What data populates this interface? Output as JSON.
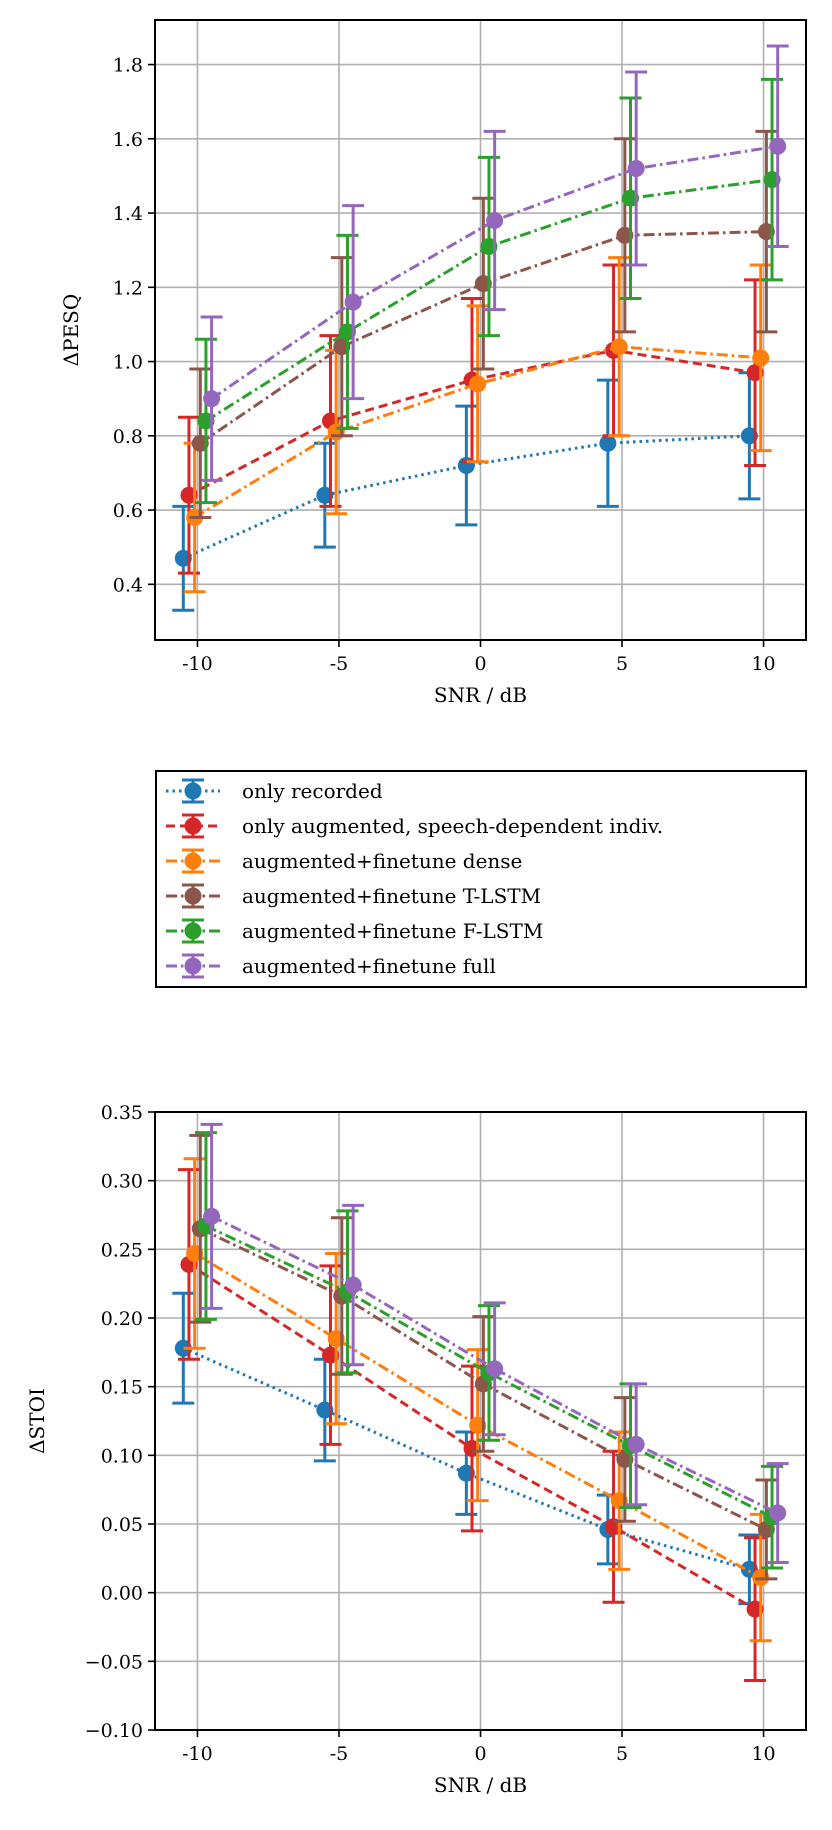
{
  "legend": {
    "entries": [
      {
        "label": "only recorded",
        "color": "#1f77b4",
        "dash": "dotted"
      },
      {
        "label": "only augmented, speech-dependent indiv.",
        "color": "#d62728",
        "dash": "dashed"
      },
      {
        "label": "augmented+finetune dense",
        "color": "#ff7f0e",
        "dash": "dashdot"
      },
      {
        "label": "augmented+finetune T-LSTM",
        "color": "#8c564b",
        "dash": "dashdot"
      },
      {
        "label": "augmented+finetune F-LSTM",
        "color": "#2ca02c",
        "dash": "dashdot"
      },
      {
        "label": "augmented+finetune full",
        "color": "#9467bd",
        "dash": "dashdot"
      }
    ]
  },
  "chart_data": [
    {
      "type": "line",
      "title": "",
      "xlabel": "SNR / dB",
      "ylabel": "ΔPESQ",
      "xlim": [
        -11.5,
        11.5
      ],
      "ylim": [
        0.25,
        1.92
      ],
      "x_ticks": [
        -10,
        -5,
        0,
        5,
        10
      ],
      "x_tick_labels": [
        "-10",
        "-5",
        "0",
        "5",
        "10"
      ],
      "y_ticks": [
        0.4,
        0.6,
        0.8,
        1.0,
        1.2,
        1.4,
        1.6,
        1.8
      ],
      "y_tick_labels": [
        "0.4",
        "0.6",
        "0.8",
        "1.0",
        "1.2",
        "1.4",
        "1.6",
        "1.8"
      ],
      "grid": true,
      "x": [
        -10,
        -5,
        0,
        5,
        10
      ],
      "series": [
        {
          "name": "only recorded",
          "offset": -0.5,
          "values": [
            0.47,
            0.64,
            0.72,
            0.78,
            0.8
          ],
          "err": [
            0.14,
            0.14,
            0.16,
            0.17,
            0.17
          ]
        },
        {
          "name": "only augmented, speech-dependent indiv.",
          "offset": -0.3,
          "values": [
            0.64,
            0.84,
            0.95,
            1.03,
            0.97
          ],
          "err": [
            0.21,
            0.23,
            0.22,
            0.23,
            0.25
          ]
        },
        {
          "name": "augmented+finetune dense",
          "offset": -0.1,
          "values": [
            0.58,
            0.81,
            0.94,
            1.04,
            1.01
          ],
          "err": [
            0.2,
            0.22,
            0.21,
            0.24,
            0.25
          ]
        },
        {
          "name": "augmented+finetune T-LSTM",
          "offset": 0.1,
          "values": [
            0.78,
            1.04,
            1.21,
            1.34,
            1.35
          ],
          "err": [
            0.2,
            0.24,
            0.23,
            0.26,
            0.27
          ]
        },
        {
          "name": "augmented+finetune F-LSTM",
          "offset": 0.3,
          "values": [
            0.84,
            1.08,
            1.31,
            1.44,
            1.49
          ],
          "err": [
            0.22,
            0.26,
            0.24,
            0.27,
            0.27
          ]
        },
        {
          "name": "augmented+finetune full",
          "offset": 0.5,
          "values": [
            0.9,
            1.16,
            1.38,
            1.52,
            1.58
          ],
          "err": [
            0.22,
            0.26,
            0.24,
            0.26,
            0.27
          ]
        }
      ]
    },
    {
      "type": "line",
      "title": "",
      "xlabel": "SNR / dB",
      "ylabel": "ΔSTOI",
      "xlim": [
        -11.5,
        11.5
      ],
      "ylim": [
        -0.1,
        0.35
      ],
      "x_ticks": [
        -10,
        -5,
        0,
        5,
        10
      ],
      "x_tick_labels": [
        "-10",
        "-5",
        "0",
        "5",
        "10"
      ],
      "y_ticks": [
        -0.1,
        -0.05,
        0.0,
        0.05,
        0.1,
        0.15,
        0.2,
        0.25,
        0.3,
        0.35
      ],
      "y_tick_labels": [
        "−0.10",
        "−0.05",
        "0.00",
        "0.05",
        "0.10",
        "0.15",
        "0.20",
        "0.25",
        "0.30",
        "0.35"
      ],
      "grid": true,
      "x": [
        -10,
        -5,
        0,
        5,
        10
      ],
      "series": [
        {
          "name": "only recorded",
          "offset": -0.5,
          "values": [
            0.178,
            0.133,
            0.087,
            0.046,
            0.017
          ],
          "err": [
            0.04,
            0.037,
            0.03,
            0.025,
            0.025
          ]
        },
        {
          "name": "only augmented, speech-dependent indiv.",
          "offset": -0.3,
          "values": [
            0.239,
            0.173,
            0.105,
            0.048,
            -0.012
          ],
          "err": [
            0.069,
            0.065,
            0.06,
            0.055,
            0.052
          ]
        },
        {
          "name": "augmented+finetune dense",
          "offset": -0.1,
          "values": [
            0.247,
            0.185,
            0.122,
            0.067,
            0.011
          ],
          "err": [
            0.069,
            0.062,
            0.055,
            0.05,
            0.046
          ]
        },
        {
          "name": "augmented+finetune T-LSTM",
          "offset": 0.1,
          "values": [
            0.265,
            0.216,
            0.152,
            0.097,
            0.046
          ],
          "err": [
            0.068,
            0.057,
            0.049,
            0.045,
            0.036
          ]
        },
        {
          "name": "augmented+finetune F-LSTM",
          "offset": 0.3,
          "values": [
            0.267,
            0.219,
            0.16,
            0.107,
            0.055
          ],
          "err": [
            0.068,
            0.059,
            0.049,
            0.045,
            0.037
          ]
        },
        {
          "name": "augmented+finetune full",
          "offset": 0.5,
          "values": [
            0.274,
            0.224,
            0.163,
            0.108,
            0.058
          ],
          "err": [
            0.067,
            0.058,
            0.048,
            0.044,
            0.036
          ]
        }
      ]
    }
  ]
}
